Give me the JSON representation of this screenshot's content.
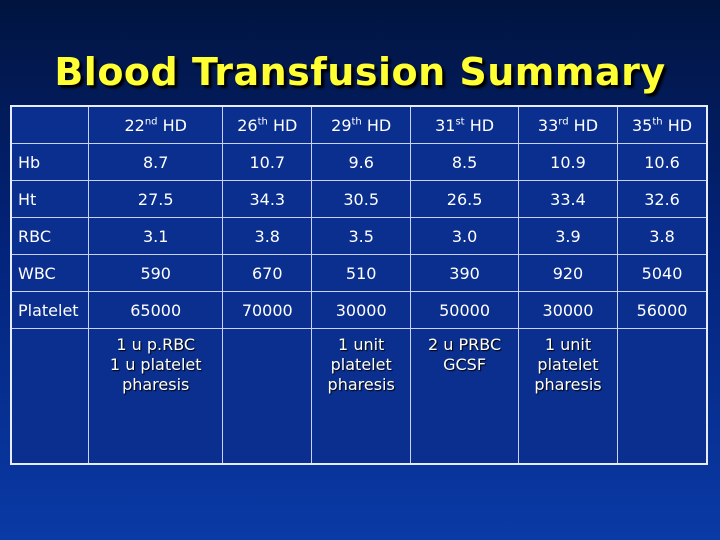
{
  "title": "Blood Transfusion Summary",
  "headers": [
    {
      "num": "22",
      "sup": "nd",
      "unit": "HD"
    },
    {
      "num": "26",
      "sup": "th",
      "unit": "HD"
    },
    {
      "num": "29",
      "sup": "th",
      "unit": "HD"
    },
    {
      "num": "31",
      "sup": "st",
      "unit": "HD"
    },
    {
      "num": "33",
      "sup": "rd",
      "unit": "HD"
    },
    {
      "num": "35",
      "sup": "th",
      "unit": "HD"
    }
  ],
  "rows": [
    {
      "label": "Hb",
      "values": [
        "8.7",
        "10.7",
        "9.6",
        "8.5",
        "10.9",
        "10.6"
      ]
    },
    {
      "label": "Ht",
      "values": [
        "27.5",
        "34.3",
        "30.5",
        "26.5",
        "33.4",
        "32.6"
      ]
    },
    {
      "label": "RBC",
      "values": [
        "3.1",
        "3.8",
        "3.5",
        "3.0",
        "3.9",
        "3.8"
      ]
    },
    {
      "label": "WBC",
      "values": [
        "590",
        "670",
        "510",
        "390",
        "920",
        "5040"
      ]
    },
    {
      "label": "Platelet",
      "values": [
        "65000",
        "70000",
        "30000",
        "50000",
        "30000",
        "56000"
      ]
    }
  ],
  "transfusions": [
    [
      "1 u p.RBC",
      "1 u platelet",
      "pharesis"
    ],
    [],
    [
      "1 unit",
      "platelet",
      "pharesis"
    ],
    [
      "2 u PRBC",
      "GCSF"
    ],
    [
      "1 unit",
      "platelet",
      "pharesis"
    ],
    []
  ],
  "colors": {
    "title": "#ffff33",
    "background": "#03237a",
    "text": "#ffffff"
  }
}
